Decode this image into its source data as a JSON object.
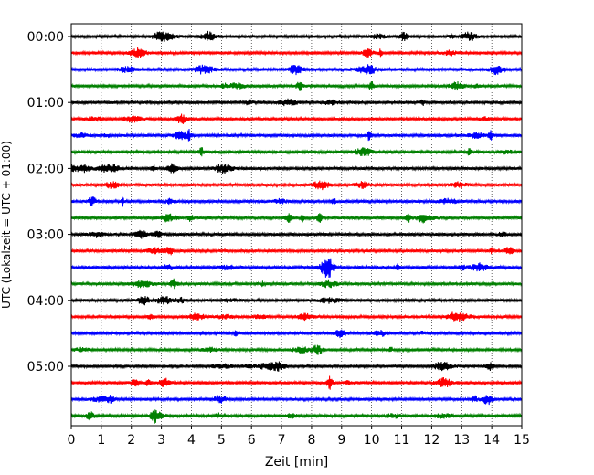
{
  "chart_data": {
    "type": "line",
    "title": "",
    "xlabel": "Zeit  [min]",
    "ylabel": "UTC (Lokalzeit = UTC + 01:00)",
    "xlim": [
      0,
      15
    ],
    "x_ticks": [
      0,
      1,
      2,
      3,
      4,
      5,
      6,
      7,
      8,
      9,
      10,
      11,
      12,
      13,
      14,
      15
    ],
    "x_tick_labels": [
      "0",
      "1",
      "2",
      "3",
      "4",
      "5",
      "6",
      "7",
      "8",
      "9",
      "10",
      "11",
      "12",
      "13",
      "14",
      "15"
    ],
    "y_tick_labels": [
      "00:00",
      "01:00",
      "02:00",
      "03:00",
      "04:00",
      "05:00"
    ],
    "grid": "vertical dotted",
    "trace_interval_minutes": 15,
    "trace_count": 24,
    "trace_colors": [
      "#000000",
      "#ff0000",
      "#0000ff",
      "#008000"
    ],
    "traces": [
      {
        "start": "00:00",
        "color": "#000000"
      },
      {
        "start": "00:15",
        "color": "#ff0000"
      },
      {
        "start": "00:30",
        "color": "#0000ff"
      },
      {
        "start": "00:45",
        "color": "#008000"
      },
      {
        "start": "01:00",
        "color": "#000000"
      },
      {
        "start": "01:15",
        "color": "#ff0000"
      },
      {
        "start": "01:30",
        "color": "#0000ff"
      },
      {
        "start": "01:45",
        "color": "#008000"
      },
      {
        "start": "02:00",
        "color": "#000000"
      },
      {
        "start": "02:15",
        "color": "#ff0000"
      },
      {
        "start": "02:30",
        "color": "#0000ff"
      },
      {
        "start": "02:45",
        "color": "#008000"
      },
      {
        "start": "03:00",
        "color": "#000000"
      },
      {
        "start": "03:15",
        "color": "#ff0000"
      },
      {
        "start": "03:30",
        "color": "#0000ff"
      },
      {
        "start": "03:45",
        "color": "#008000"
      },
      {
        "start": "04:00",
        "color": "#000000"
      },
      {
        "start": "04:15",
        "color": "#ff0000"
      },
      {
        "start": "04:30",
        "color": "#0000ff"
      },
      {
        "start": "04:45",
        "color": "#008000"
      },
      {
        "start": "05:00",
        "color": "#000000"
      },
      {
        "start": "05:15",
        "color": "#ff0000"
      },
      {
        "start": "05:30",
        "color": "#0000ff"
      },
      {
        "start": "05:45",
        "color": "#008000"
      }
    ]
  }
}
